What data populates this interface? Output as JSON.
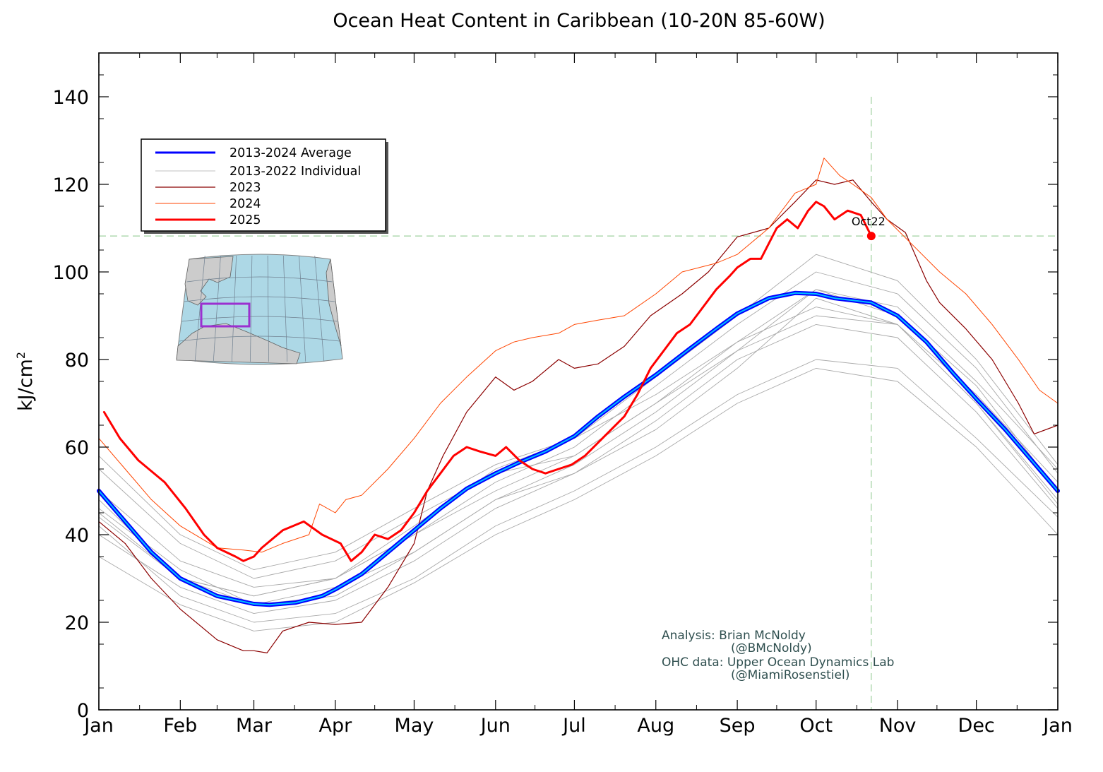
{
  "chart_data": {
    "type": "line",
    "title": "Ocean Heat Content in Caribbean (10-20N 85-60W)",
    "ylabel_base": "kJ/cm",
    "ylabel_sup": "2",
    "xlabel": "",
    "ylim": [
      0,
      150
    ],
    "xlim": [
      0,
      365
    ],
    "y_ticks": [
      "0",
      "20",
      "40",
      "60",
      "80",
      "100",
      "120",
      "140"
    ],
    "x_ticks": [
      "Jan",
      "Feb",
      "Mar",
      "Apr",
      "May",
      "Jun",
      "Jul",
      "Aug",
      "Sep",
      "Oct",
      "Nov",
      "Dec",
      "Jan"
    ],
    "x_tick_days": [
      0,
      31,
      59,
      90,
      120,
      151,
      181,
      212,
      243,
      273,
      304,
      334,
      365
    ],
    "grid": false,
    "legend_position": "upper-left",
    "legend": [
      {
        "label": "2013-2024 Average",
        "color": "#0000ff"
      },
      {
        "label": "2013-2022 Individual",
        "color": "#c0c0c0"
      },
      {
        "label": "2023",
        "color": "#8b0000"
      },
      {
        "label": "2024",
        "color": "#ff4500"
      },
      {
        "label": "2025",
        "color": "#ff0000"
      }
    ],
    "reference_day": 294,
    "reference_value": 108.2,
    "annotation": "Oct22",
    "credits": {
      "line1": "Analysis: Brian McNoldy",
      "line2": "(@BMcNoldy)",
      "line3": "OHC data: Upper Ocean Dynamics Lab",
      "line4": "(@MiamiRosenstiel)"
    },
    "series": [
      {
        "name": "2013-2024 Average",
        "style": "average",
        "x": [
          0,
          10,
          20,
          31,
          45,
          59,
          65,
          75,
          85,
          90,
          100,
          110,
          120,
          130,
          140,
          151,
          160,
          170,
          181,
          190,
          200,
          212,
          225,
          235,
          243,
          255,
          265,
          273,
          280,
          287,
          294,
          304,
          315,
          325,
          334,
          345,
          355,
          365
        ],
        "y": [
          50,
          43,
          36,
          30,
          26,
          24.2,
          24,
          24.5,
          26,
          27.5,
          31,
          36,
          41,
          46,
          50.5,
          54,
          56.5,
          59,
          62.5,
          67,
          71.5,
          76.5,
          82.5,
          87,
          90.5,
          94,
          95.2,
          95,
          94,
          93.5,
          93,
          90,
          84,
          77,
          71,
          64,
          57,
          50
        ]
      },
      {
        "name": "2023",
        "style": "y2023",
        "x": [
          0,
          10,
          20,
          31,
          45,
          55,
          59,
          64,
          70,
          80,
          90,
          100,
          110,
          120,
          125,
          131,
          140,
          151,
          158,
          165,
          175,
          181,
          190,
          200,
          210,
          222,
          232,
          243,
          255,
          265,
          273,
          280,
          287,
          294,
          300,
          307,
          315,
          320,
          330,
          340,
          350,
          356,
          365
        ],
        "y": [
          43,
          38,
          30,
          23,
          16,
          13.5,
          13.5,
          13,
          18,
          20,
          19.5,
          20,
          28,
          38,
          50,
          58,
          68,
          76,
          73,
          75,
          80,
          78,
          79,
          83,
          90,
          95,
          100,
          108,
          110,
          116,
          121,
          120,
          121,
          116,
          112,
          109,
          98,
          93,
          87,
          80,
          70,
          63,
          65
        ]
      },
      {
        "name": "2024",
        "style": "y2024",
        "x": [
          0,
          10,
          20,
          31,
          45,
          55,
          62,
          70,
          80,
          84,
          90,
          94,
          100,
          110,
          120,
          130,
          140,
          151,
          158,
          165,
          175,
          181,
          190,
          200,
          212,
          222,
          235,
          243,
          255,
          265,
          273,
          276,
          282,
          287,
          294,
          300,
          310,
          320,
          330,
          340,
          350,
          358,
          365
        ],
        "y": [
          62,
          55,
          48,
          42,
          37,
          36.5,
          36,
          38,
          40,
          47,
          45,
          48,
          49,
          55,
          62,
          70,
          76,
          82,
          84,
          85,
          86,
          88,
          89,
          90,
          95,
          100,
          102,
          104,
          110,
          118,
          120,
          126,
          122,
          120,
          117,
          112,
          106,
          100,
          95,
          88,
          80,
          73,
          70
        ]
      },
      {
        "name": "2025",
        "style": "y2025",
        "x": [
          2,
          8,
          15,
          25,
          33,
          40,
          45,
          52,
          55,
          59,
          62,
          70,
          78,
          85,
          92,
          96,
          100,
          105,
          110,
          115,
          120,
          125,
          130,
          135,
          140,
          145,
          151,
          155,
          160,
          165,
          170,
          175,
          180,
          185,
          190,
          195,
          200,
          205,
          210,
          215,
          220,
          225,
          230,
          235,
          240,
          243,
          248,
          252,
          258,
          262,
          266,
          270,
          273,
          276,
          280,
          285,
          290,
          294
        ],
        "y": [
          68,
          62,
          57,
          52,
          46,
          40,
          37,
          35,
          34,
          35,
          37,
          41,
          43,
          40,
          38,
          34,
          36,
          40,
          39,
          41,
          45,
          50,
          54,
          58,
          60,
          59,
          58,
          60,
          57,
          55,
          54,
          55,
          56,
          58,
          61,
          64,
          67,
          72,
          78,
          82,
          86,
          88,
          92,
          96,
          99,
          101,
          103,
          103,
          110,
          112,
          110,
          114,
          116,
          115,
          112,
          114,
          113,
          108.2
        ]
      },
      {
        "name": "2013",
        "style": "indiv",
        "x": [
          0,
          31,
          59,
          90,
          120,
          151,
          181,
          212,
          243,
          273,
          304,
          334,
          365
        ],
        "y": [
          48,
          30,
          26,
          30,
          42,
          55,
          62,
          72,
          84,
          92,
          88,
          72,
          52
        ]
      },
      {
        "name": "2014",
        "style": "indiv",
        "x": [
          0,
          31,
          59,
          90,
          120,
          151,
          181,
          212,
          243,
          273,
          304,
          334,
          365
        ],
        "y": [
          42,
          26,
          20,
          22,
          30,
          42,
          50,
          60,
          72,
          80,
          78,
          62,
          44
        ]
      },
      {
        "name": "2015",
        "style": "indiv",
        "x": [
          0,
          31,
          59,
          90,
          120,
          151,
          181,
          212,
          243,
          273,
          304,
          334,
          365
        ],
        "y": [
          35,
          24,
          18,
          20,
          29,
          40,
          48,
          58,
          70,
          78,
          75,
          60,
          40
        ]
      },
      {
        "name": "2016",
        "style": "indiv",
        "x": [
          0,
          31,
          59,
          90,
          120,
          151,
          181,
          212,
          243,
          273,
          304,
          334,
          365
        ],
        "y": [
          55,
          38,
          30,
          34,
          44,
          54,
          58,
          70,
          82,
          96,
          92,
          75,
          55
        ]
      },
      {
        "name": "2017",
        "style": "indiv",
        "x": [
          0,
          31,
          59,
          90,
          120,
          151,
          181,
          212,
          243,
          273,
          304,
          334,
          365
        ],
        "y": [
          45,
          30,
          24,
          26,
          36,
          48,
          56,
          68,
          82,
          90,
          88,
          70,
          48
        ]
      },
      {
        "name": "2018",
        "style": "indiv",
        "x": [
          0,
          31,
          59,
          90,
          120,
          151,
          181,
          212,
          243,
          273,
          304,
          334,
          365
        ],
        "y": [
          40,
          28,
          22,
          25,
          34,
          46,
          54,
          66,
          80,
          88,
          85,
          68,
          46
        ]
      },
      {
        "name": "2019",
        "style": "indiv",
        "x": [
          0,
          31,
          59,
          90,
          120,
          151,
          181,
          212,
          243,
          273,
          304,
          334,
          365
        ],
        "y": [
          50,
          34,
          28,
          30,
          40,
          52,
          60,
          74,
          88,
          100,
          95,
          78,
          54
        ]
      },
      {
        "name": "2020",
        "style": "indiv",
        "x": [
          0,
          31,
          59,
          90,
          120,
          151,
          181,
          212,
          243,
          273,
          304,
          334,
          365
        ],
        "y": [
          58,
          40,
          32,
          36,
          46,
          56,
          62,
          76,
          90,
          104,
          98,
          80,
          56
        ]
      },
      {
        "name": "2021",
        "style": "indiv",
        "x": [
          0,
          31,
          59,
          90,
          120,
          151,
          181,
          212,
          243,
          273,
          304,
          334,
          365
        ],
        "y": [
          44,
          30,
          26,
          30,
          40,
          50,
          58,
          70,
          84,
          96,
          90,
          74,
          50
        ]
      },
      {
        "name": "2022",
        "style": "indiv",
        "x": [
          0,
          31,
          59,
          90,
          120,
          151,
          181,
          212,
          243,
          273,
          304,
          334,
          365
        ],
        "y": [
          46,
          32,
          24,
          28,
          36,
          48,
          54,
          64,
          78,
          94,
          88,
          70,
          47
        ]
      }
    ]
  }
}
